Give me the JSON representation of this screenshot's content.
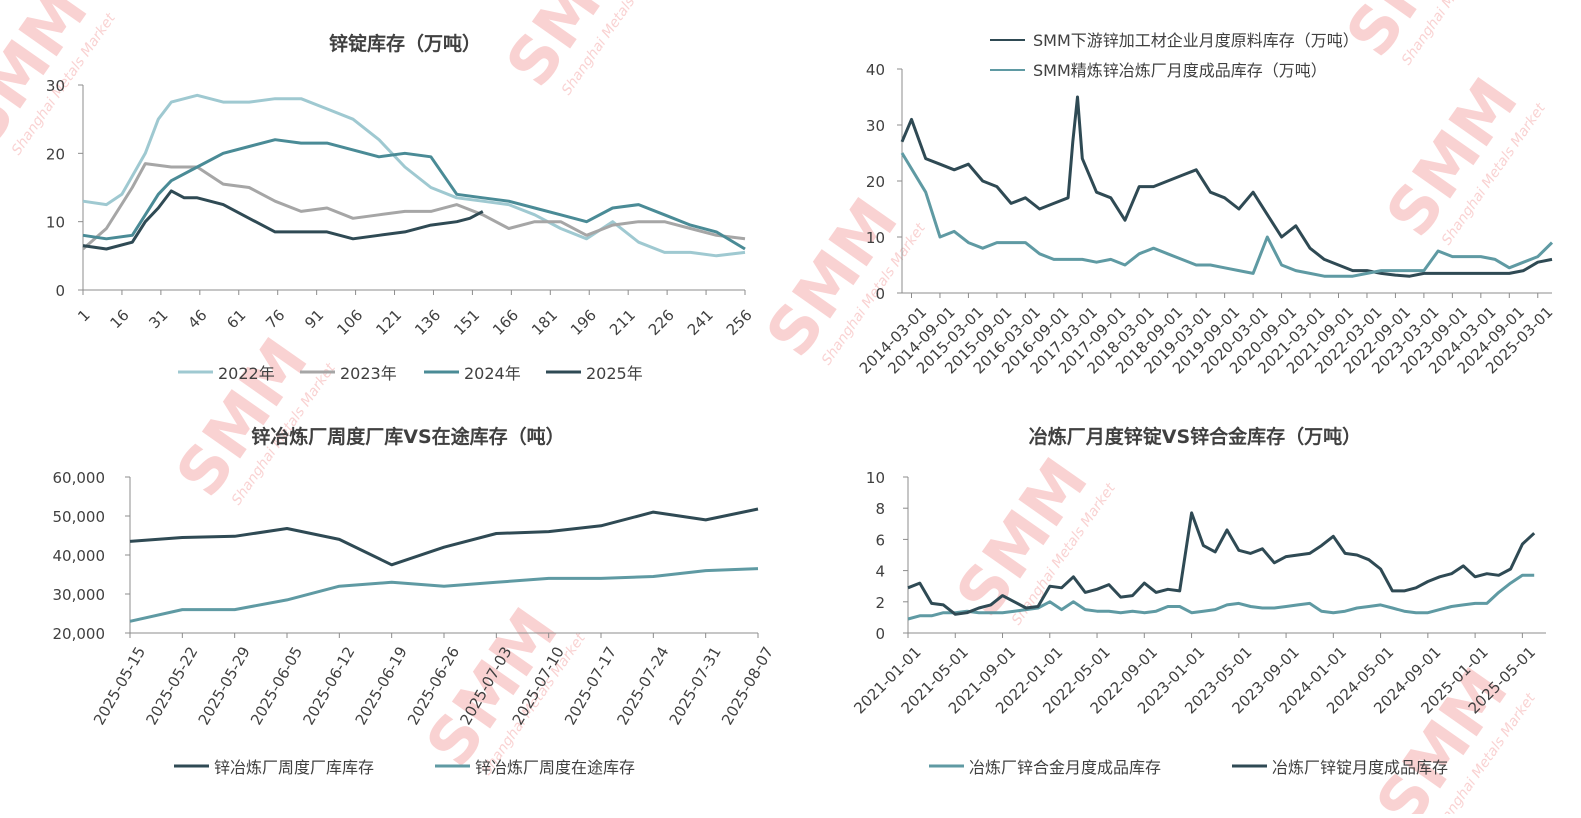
{
  "watermark": {
    "brand": "SMM",
    "subtitle": "Shanghai Metals Market"
  },
  "chart_data": [
    {
      "id": "c1",
      "type": "line",
      "title": "锌锭库存（万吨）",
      "xlabel": "",
      "ylabel": "",
      "ylim": [
        0,
        30
      ],
      "yticks": [
        0,
        10,
        20,
        30
      ],
      "xlim": [
        1,
        256
      ],
      "xticks": [
        "1",
        "16",
        "31",
        "46",
        "61",
        "76",
        "91",
        "106",
        "121",
        "136",
        "151",
        "166",
        "181",
        "196",
        "211",
        "226",
        "241",
        "256"
      ],
      "grid": false,
      "legend_position": "bottom",
      "series": [
        {
          "name": "2022年",
          "color": "#9fc9d1",
          "x": [
            1,
            10,
            16,
            25,
            30,
            35,
            45,
            55,
            65,
            75,
            85,
            95,
            105,
            115,
            125,
            135,
            145,
            155,
            165,
            175,
            185,
            195,
            205,
            215,
            225,
            235,
            245,
            256
          ],
          "y": [
            13,
            12.5,
            14,
            20,
            25,
            27.5,
            28.5,
            27.5,
            27.5,
            28,
            28,
            26.5,
            25,
            22,
            18,
            15,
            13.5,
            13,
            12.5,
            11,
            9,
            7.5,
            10,
            7,
            5.5,
            5.5,
            5,
            5.5
          ]
        },
        {
          "name": "2023年",
          "color": "#a6a6a6",
          "x": [
            1,
            10,
            20,
            25,
            35,
            45,
            55,
            65,
            75,
            85,
            95,
            105,
            115,
            125,
            135,
            145,
            155,
            165,
            175,
            185,
            195,
            205,
            215,
            225,
            235,
            245,
            256
          ],
          "y": [
            6,
            9,
            15,
            18.5,
            18,
            18,
            15.5,
            15,
            13,
            11.5,
            12,
            10.5,
            11,
            11.5,
            11.5,
            12.5,
            11,
            9,
            10,
            10,
            8,
            9.5,
            10,
            10,
            9,
            8,
            7.5
          ]
        },
        {
          "name": "2024年",
          "color": "#4a8b96",
          "x": [
            1,
            10,
            20,
            25,
            30,
            35,
            45,
            55,
            65,
            75,
            85,
            95,
            105,
            115,
            125,
            135,
            145,
            155,
            165,
            175,
            185,
            195,
            205,
            215,
            225,
            235,
            245,
            256
          ],
          "y": [
            8,
            7.5,
            8,
            11,
            14,
            16,
            18,
            20,
            21,
            22,
            21.5,
            21.5,
            20.5,
            19.5,
            20,
            19.5,
            14,
            13.5,
            13,
            12,
            11,
            10,
            12,
            12.5,
            11,
            9.5,
            8.5,
            6
          ]
        },
        {
          "name": "2025年",
          "color": "#2f4a54",
          "x": [
            1,
            10,
            20,
            25,
            30,
            35,
            40,
            45,
            55,
            65,
            75,
            85,
            95,
            105,
            115,
            125,
            135,
            145,
            150,
            155
          ],
          "y": [
            6.5,
            6,
            7,
            10,
            12,
            14.5,
            13.5,
            13.5,
            12.5,
            10.5,
            8.5,
            8.5,
            8.5,
            7.5,
            8,
            8.5,
            9.5,
            10,
            10.5,
            11.5
          ]
        }
      ]
    },
    {
      "id": "c2",
      "type": "line",
      "title": "",
      "xlabel": "",
      "ylabel": "",
      "ylim": [
        0,
        40
      ],
      "yticks": [
        0,
        10,
        20,
        30,
        40
      ],
      "xlim": [
        "2014-01",
        "2025-06"
      ],
      "xticks": [
        "2014-03-01",
        "2014-09-01",
        "2015-03-01",
        "2015-09-01",
        "2016-03-01",
        "2016-09-01",
        "2017-03-01",
        "2017-09-01",
        "2018-03-01",
        "2018-09-01",
        "2019-03-01",
        "2019-09-01",
        "2020-03-01",
        "2020-09-01",
        "2021-03-01",
        "2021-09-01",
        "2022-03-01",
        "2022-09-01",
        "2023-03-01",
        "2023-09-01",
        "2024-03-01",
        "2024-09-01",
        "2025-03-01"
      ],
      "grid": false,
      "legend_position": "top",
      "series": [
        {
          "name": "SMM下游锌加工材企业月度原料库存（万吨）",
          "color": "#2f4a54",
          "x": [
            "2014-01",
            "2014-03",
            "2014-06",
            "2014-09",
            "2014-12",
            "2015-03",
            "2015-06",
            "2015-09",
            "2015-12",
            "2016-03",
            "2016-06",
            "2016-09",
            "2016-12",
            "2017-01",
            "2017-02",
            "2017-03",
            "2017-06",
            "2017-09",
            "2017-12",
            "2018-03",
            "2018-06",
            "2018-09",
            "2018-12",
            "2019-03",
            "2019-06",
            "2019-09",
            "2019-12",
            "2020-03",
            "2020-06",
            "2020-09",
            "2020-12",
            "2021-03",
            "2021-06",
            "2021-09",
            "2021-12",
            "2022-03",
            "2022-06",
            "2022-09",
            "2022-12",
            "2023-03",
            "2023-06",
            "2023-09",
            "2023-12",
            "2024-03",
            "2024-06",
            "2024-09",
            "2024-12",
            "2025-03",
            "2025-06"
          ],
          "y": [
            27,
            31,
            24,
            23,
            22,
            23,
            20,
            19,
            16,
            17,
            15,
            16,
            17,
            27,
            35,
            24,
            18,
            17,
            13,
            19,
            19,
            20,
            21,
            22,
            18,
            17,
            15,
            18,
            14,
            10,
            12,
            8,
            6,
            5,
            4,
            4,
            3.5,
            3.2,
            3,
            3.5,
            3.5,
            3.5,
            3.5,
            3.5,
            3.5,
            3.5,
            4,
            5.5,
            6
          ]
        },
        {
          "name": "SMM精炼锌冶炼厂月度成品库存（万吨）",
          "color": "#5f9aa3",
          "x": [
            "2014-01",
            "2014-06",
            "2014-09",
            "2014-12",
            "2015-03",
            "2015-06",
            "2015-09",
            "2015-12",
            "2016-03",
            "2016-06",
            "2016-09",
            "2016-12",
            "2017-03",
            "2017-06",
            "2017-09",
            "2017-12",
            "2018-03",
            "2018-06",
            "2018-09",
            "2018-12",
            "2019-03",
            "2019-06",
            "2019-09",
            "2019-12",
            "2020-03",
            "2020-06",
            "2020-09",
            "2020-12",
            "2021-03",
            "2021-06",
            "2021-09",
            "2021-12",
            "2022-03",
            "2022-06",
            "2022-09",
            "2022-12",
            "2023-03",
            "2023-06",
            "2023-09",
            "2023-12",
            "2024-03",
            "2024-06",
            "2024-09",
            "2024-12",
            "2025-03",
            "2025-06"
          ],
          "y": [
            25,
            18,
            10,
            11,
            9,
            8,
            9,
            9,
            9,
            7,
            6,
            6,
            6,
            5.5,
            6,
            5,
            7,
            8,
            7,
            6,
            5,
            5,
            4.5,
            4,
            3.5,
            10,
            5,
            4,
            3.5,
            3,
            3,
            3,
            3.5,
            4,
            4,
            4,
            4,
            7.5,
            6.5,
            6.5,
            6.5,
            6,
            4.5,
            5.5,
            6.5,
            9
          ]
        }
      ]
    },
    {
      "id": "c3",
      "type": "line",
      "title": "锌冶炼厂周度厂库VS在途库存（吨）",
      "xlabel": "",
      "ylabel": "",
      "ylim": [
        20000,
        60000
      ],
      "yticks": [
        20000,
        30000,
        40000,
        50000,
        60000
      ],
      "ytick_labels": [
        "20,000",
        "30,000",
        "40,000",
        "50,000",
        "60,000"
      ],
      "categories": [
        "2025-05-15",
        "2025-05-22",
        "2025-05-29",
        "2025-06-05",
        "2025-06-12",
        "2025-06-19",
        "2025-06-26",
        "2025-07-03",
        "2025-07-10",
        "2025-07-17",
        "2025-07-24",
        "2025-07-31",
        "2025-08-07"
      ],
      "grid": false,
      "legend_position": "bottom",
      "series": [
        {
          "name": "锌冶炼厂周度厂库库存",
          "color": "#2f4a54",
          "values": [
            43500,
            44500,
            44800,
            46800,
            44000,
            37500,
            42000,
            45500,
            46000,
            47500,
            51000,
            49000,
            51800
          ]
        },
        {
          "name": "锌冶炼厂周度在途库存",
          "color": "#5f9aa3",
          "values": [
            23000,
            26000,
            26000,
            28500,
            32000,
            33000,
            32000,
            33000,
            34000,
            34000,
            34500,
            36000,
            36500
          ]
        }
      ]
    },
    {
      "id": "c4",
      "type": "line",
      "title": "冶炼厂月度锌锭VS锌合金库存（万吨）",
      "xlabel": "",
      "ylabel": "",
      "ylim": [
        0,
        10
      ],
      "yticks": [
        0,
        2,
        4,
        6,
        8,
        10
      ],
      "xlim": [
        "2021-01",
        "2025-07"
      ],
      "xticks": [
        "2021-01-01",
        "2021-05-01",
        "2021-09-01",
        "2022-01-01",
        "2022-05-01",
        "2022-09-01",
        "2023-01-01",
        "2023-05-01",
        "2023-09-01",
        "2024-01-01",
        "2024-05-01",
        "2024-09-01",
        "2025-01-01",
        "2025-05-01"
      ],
      "grid": false,
      "legend_position": "bottom",
      "series": [
        {
          "name": "冶炼厂锌合金月度成品库存",
          "color": "#5f9aa3",
          "x": [
            "2021-01",
            "2021-02",
            "2021-03",
            "2021-04",
            "2021-05",
            "2021-06",
            "2021-07",
            "2021-08",
            "2021-09",
            "2021-10",
            "2021-11",
            "2021-12",
            "2022-01",
            "2022-02",
            "2022-03",
            "2022-04",
            "2022-05",
            "2022-06",
            "2022-07",
            "2022-08",
            "2022-09",
            "2022-10",
            "2022-11",
            "2022-12",
            "2023-01",
            "2023-02",
            "2023-03",
            "2023-04",
            "2023-05",
            "2023-06",
            "2023-07",
            "2023-08",
            "2023-09",
            "2023-10",
            "2023-11",
            "2023-12",
            "2024-01",
            "2024-02",
            "2024-03",
            "2024-04",
            "2024-05",
            "2024-06",
            "2024-07",
            "2024-08",
            "2024-09",
            "2024-10",
            "2024-11",
            "2024-12",
            "2025-01",
            "2025-02",
            "2025-03",
            "2025-04",
            "2025-05",
            "2025-06"
          ],
          "y": [
            0.9,
            1.1,
            1.1,
            1.3,
            1.3,
            1.4,
            1.3,
            1.3,
            1.3,
            1.4,
            1.5,
            1.6,
            2.0,
            1.5,
            2.0,
            1.5,
            1.4,
            1.4,
            1.3,
            1.4,
            1.3,
            1.4,
            1.7,
            1.7,
            1.3,
            1.4,
            1.5,
            1.8,
            1.9,
            1.7,
            1.6,
            1.6,
            1.7,
            1.8,
            1.9,
            1.4,
            1.3,
            1.4,
            1.6,
            1.7,
            1.8,
            1.6,
            1.4,
            1.3,
            1.3,
            1.5,
            1.7,
            1.8,
            1.9,
            1.9,
            2.6,
            3.2,
            3.7,
            3.7
          ]
        },
        {
          "name": "冶炼厂锌锭月度成品库存",
          "color": "#2f4a54",
          "x": [
            "2021-01",
            "2021-02",
            "2021-03",
            "2021-04",
            "2021-05",
            "2021-06",
            "2021-07",
            "2021-08",
            "2021-09",
            "2021-10",
            "2021-11",
            "2021-12",
            "2022-01",
            "2022-02",
            "2022-03",
            "2022-04",
            "2022-05",
            "2022-06",
            "2022-07",
            "2022-08",
            "2022-09",
            "2022-10",
            "2022-11",
            "2022-12",
            "2023-01",
            "2023-02",
            "2023-03",
            "2023-04",
            "2023-05",
            "2023-06",
            "2023-07",
            "2023-08",
            "2023-09",
            "2023-10",
            "2023-11",
            "2023-12",
            "2024-01",
            "2024-02",
            "2024-03",
            "2024-04",
            "2024-05",
            "2024-06",
            "2024-07",
            "2024-08",
            "2024-09",
            "2024-10",
            "2024-11",
            "2024-12",
            "2025-01",
            "2025-02",
            "2025-03",
            "2025-04",
            "2025-05",
            "2025-06"
          ],
          "y": [
            2.9,
            3.2,
            1.9,
            1.8,
            1.2,
            1.3,
            1.6,
            1.8,
            2.4,
            2.0,
            1.6,
            1.7,
            3.0,
            2.9,
            3.6,
            2.6,
            2.8,
            3.1,
            2.3,
            2.4,
            3.2,
            2.6,
            2.8,
            2.7,
            7.7,
            5.6,
            5.2,
            6.6,
            5.3,
            5.1,
            5.4,
            4.5,
            4.9,
            5.0,
            5.1,
            5.6,
            6.2,
            5.1,
            5.0,
            4.7,
            4.1,
            2.7,
            2.7,
            2.9,
            3.3,
            3.6,
            3.8,
            4.3,
            3.6,
            3.8,
            3.7,
            4.1,
            5.7,
            6.4
          ]
        }
      ]
    }
  ]
}
